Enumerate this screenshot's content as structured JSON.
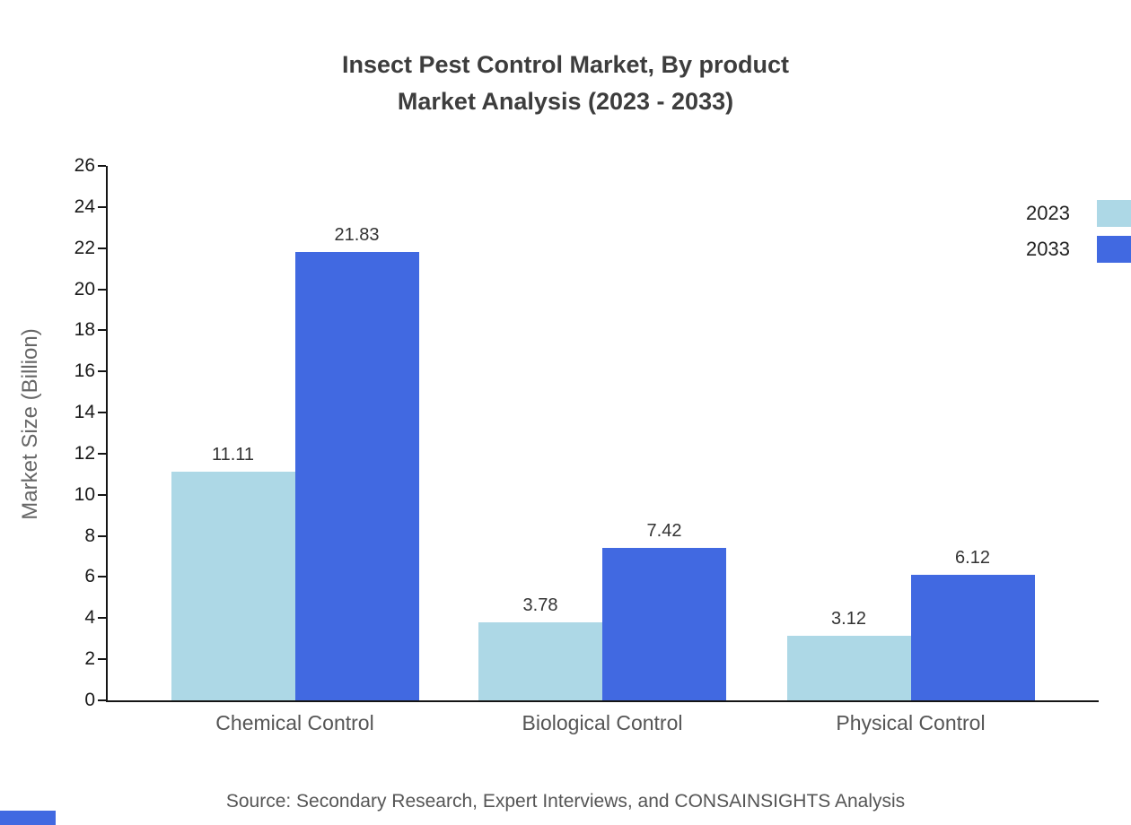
{
  "title": {
    "line1": "Insect Pest Control Market, By product",
    "line2": "Market Analysis (2023 - 2033)"
  },
  "chart_data": {
    "type": "bar",
    "categories": [
      "Chemical Control",
      "Biological Control",
      "Physical Control"
    ],
    "series": [
      {
        "name": "2023",
        "color": "#ADD8E6",
        "values": [
          11.11,
          3.78,
          3.12
        ]
      },
      {
        "name": "2033",
        "color": "#4169E1",
        "values": [
          21.83,
          7.42,
          6.12
        ]
      }
    ],
    "title": "Insect Pest Control Market, By product Market Analysis (2023 - 2033)",
    "xlabel": "",
    "ylabel": "Market Size (Billion)",
    "ylim": [
      0,
      26
    ],
    "ytick_step": 2,
    "grid": false,
    "legend_position": "top-right"
  },
  "source": "Source: Secondary Research, Expert Interviews, and CONSAINSIGHTS Analysis",
  "accent_color": "#4169E1"
}
